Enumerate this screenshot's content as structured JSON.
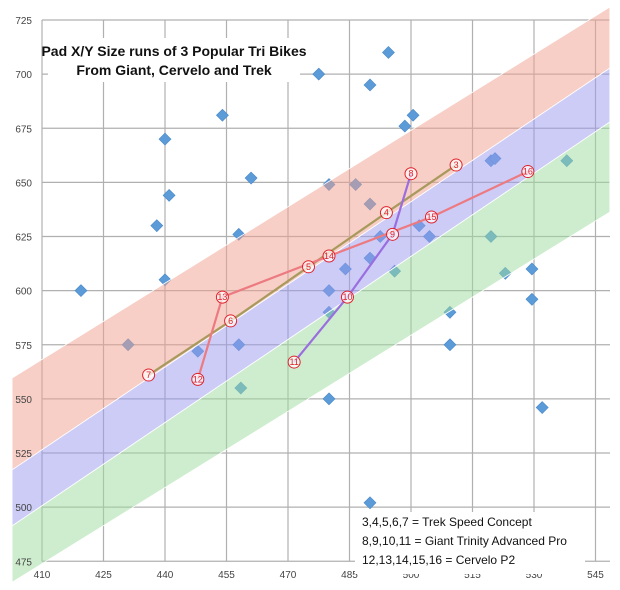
{
  "chart_data": {
    "type": "scatter",
    "title": [
      "Pad X/Y Size runs of 3 Popular Tri Bikes",
      "From Giant, Cervelo and Trek"
    ],
    "xlabel": "",
    "ylabel": "",
    "xlim": [
      410,
      545
    ],
    "ylim": [
      475,
      725
    ],
    "xticks": [
      "410",
      "425",
      "440",
      "455",
      "470",
      "485",
      "500",
      "515",
      "530",
      "545"
    ],
    "yticks": [
      "475",
      "500",
      "525",
      "550",
      "575",
      "600",
      "625",
      "650",
      "675",
      "700",
      "725"
    ],
    "grid": true,
    "points": [
      [
        419.5,
        600
      ],
      [
        431,
        575
      ],
      [
        440,
        605
      ],
      [
        438,
        630
      ],
      [
        440,
        670
      ],
      [
        441,
        644
      ],
      [
        448,
        572
      ],
      [
        454,
        681
      ],
      [
        458,
        626
      ],
      [
        458,
        575
      ],
      [
        458.5,
        555
      ],
      [
        461,
        652
      ],
      [
        477.5,
        700
      ],
      [
        480,
        649
      ],
      [
        480,
        600
      ],
      [
        480,
        590
      ],
      [
        480,
        550
      ],
      [
        484,
        610
      ],
      [
        486.5,
        649
      ],
      [
        490,
        695
      ],
      [
        490,
        640
      ],
      [
        490,
        615
      ],
      [
        490,
        502
      ],
      [
        492.5,
        625
      ],
      [
        494.5,
        710
      ],
      [
        496,
        609
      ],
      [
        498.5,
        676
      ],
      [
        500.5,
        681
      ],
      [
        502,
        630
      ],
      [
        504.5,
        625
      ],
      [
        509.5,
        590
      ],
      [
        509.5,
        575
      ],
      [
        519.5,
        660
      ],
      [
        520.5,
        661
      ],
      [
        519.5,
        625
      ],
      [
        523,
        608
      ],
      [
        529.5,
        610
      ],
      [
        529.5,
        596
      ],
      [
        532,
        546
      ],
      [
        538,
        660
      ]
    ],
    "labeled_points": {
      "3": [
        511,
        658
      ],
      "4": [
        494,
        636
      ],
      "5": [
        475,
        611
      ],
      "6": [
        456,
        586
      ],
      "7": [
        436,
        561
      ],
      "8": [
        500,
        654
      ],
      "9": [
        495.5,
        626
      ],
      "10": [
        484.5,
        597
      ],
      "11": [
        471.5,
        567
      ],
      "12": [
        448,
        559
      ],
      "13": [
        454,
        597
      ],
      "14": [
        480,
        616
      ],
      "15": [
        505,
        634
      ],
      "16": [
        528.5,
        655
      ]
    },
    "series": [
      {
        "name": "Trek Speed Concept",
        "ids": [
          "3",
          "4",
          "5",
          "6",
          "7"
        ],
        "color": "#a8995c"
      },
      {
        "name": "Giant Trinity Advanced Pro",
        "ids": [
          "8",
          "9",
          "10",
          "11"
        ],
        "color": "#9b6ee0"
      },
      {
        "name": "Cervelo P2",
        "ids": [
          "12",
          "13",
          "14",
          "15",
          "16"
        ],
        "color": "#ec7a80"
      }
    ],
    "bands": [
      {
        "color": "#f0a090",
        "upper": [
          [
            402.7,
            559.6
          ],
          [
            548.5,
            731
          ]
        ],
        "lower": [
          [
            402.7,
            517.2
          ],
          [
            548.5,
            702.8
          ]
        ]
      },
      {
        "color": "#9a9af0",
        "upper": [
          [
            402.7,
            517.2
          ],
          [
            548.5,
            702.8
          ]
        ],
        "lower": [
          [
            402.7,
            491.3
          ],
          [
            548.5,
            677.9
          ]
        ]
      },
      {
        "color": "#9ddc9d",
        "upper": [
          [
            402.7,
            491.3
          ],
          [
            548.5,
            677.9
          ]
        ],
        "lower": [
          [
            402.7,
            465.3
          ],
          [
            548.5,
            636.3
          ]
        ]
      }
    ],
    "point_color": "#5b9bd8",
    "legend": [
      "3,4,5,6,7 = Trek Speed Concept",
      "8,9,10,11 = Giant Trinity Advanced Pro",
      "12,13,14,15,16 = Cervelo P2"
    ]
  }
}
